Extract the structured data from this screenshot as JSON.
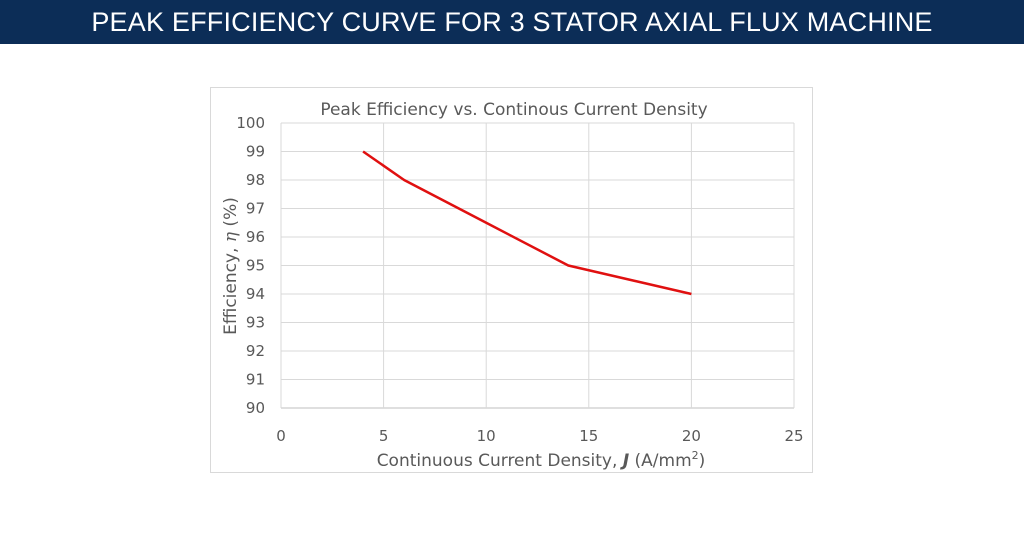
{
  "header": {
    "title": "PEAK EFFICIENCY CURVE FOR 3 STATOR AXIAL FLUX MACHINE"
  },
  "colors": {
    "header_bg": "#0c2d57",
    "series": "#e01010",
    "grid": "#d9d9d9"
  },
  "chart_data": {
    "type": "line",
    "title": "Peak Efficiency vs. Continous Current Density",
    "xlabel": "Continuous Current Density, J (A/mm2)",
    "xlabel_parts": {
      "main": "Continuous Current Density, ",
      "var": "J",
      "unit_open": " (A/mm",
      "sup": "2",
      "unit_close": ")"
    },
    "ylabel": "Efficiency, η (%)",
    "ylabel_parts": {
      "main": "Efficiency, ",
      "var": "η",
      "unit": " (%)"
    },
    "xlim": [
      0,
      25
    ],
    "ylim": [
      90,
      100
    ],
    "xticks": [
      0,
      5,
      10,
      15,
      20,
      25
    ],
    "yticks": [
      90,
      91,
      92,
      93,
      94,
      95,
      96,
      97,
      98,
      99,
      100
    ],
    "grid": true,
    "legend": "none",
    "series": [
      {
        "name": "Peak Efficiency",
        "x": [
          4,
          6,
          10,
          14,
          20
        ],
        "y": [
          99,
          98,
          96.5,
          95,
          94
        ]
      }
    ]
  }
}
